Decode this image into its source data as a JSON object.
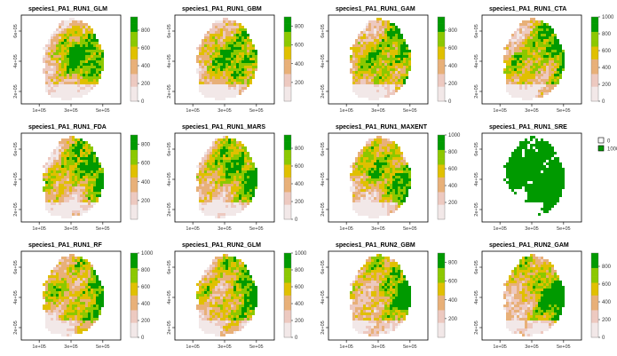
{
  "chart_data": {
    "type": "heatmap",
    "layout": {
      "rows": 3,
      "cols": 4
    },
    "x_ticks": [
      "1e+05",
      "3e+05",
      "5e+05"
    ],
    "y_ticks": [
      "2e+05",
      "4e+05",
      "6e+05"
    ],
    "colors": {
      "scale": [
        "#f2e8e8",
        "#edc9c0",
        "#e8b078",
        "#e0c000",
        "#8cc800",
        "#009a00"
      ],
      "binary": {
        "0": "#ffffff",
        "1000": "#009a00"
      }
    },
    "panels": [
      {
        "title": "species1_PA1_RUN1_GLM",
        "legend_ticks": [
          "0",
          "200",
          "400",
          "600",
          "800"
        ],
        "max": 950,
        "greenness": 0.55
      },
      {
        "title": "species1_PA1_RUN1_GBM",
        "legend_ticks": [
          "200",
          "400",
          "600",
          "800"
        ],
        "max": 900,
        "greenness": 0.5
      },
      {
        "title": "species1_PA1_RUN1_GAM",
        "legend_ticks": [
          "0",
          "200",
          "400",
          "600",
          "800"
        ],
        "max": 950,
        "greenness": 0.55
      },
      {
        "title": "species1_PA1_RUN1_CTA",
        "legend_ticks": [
          "0",
          "200",
          "400",
          "600",
          "800",
          "1000"
        ],
        "max": 1000,
        "greenness": 0.5
      },
      {
        "title": "species1_PA1_RUN1_FDA",
        "legend_ticks": [
          "200",
          "400",
          "600",
          "800"
        ],
        "max": 900,
        "greenness": 0.5
      },
      {
        "title": "species1_PA1_RUN1_MARS",
        "legend_ticks": [
          "0",
          "200",
          "400",
          "600",
          "800"
        ],
        "max": 950,
        "greenness": 0.55
      },
      {
        "title": "species1_PA1_RUN1_MAXENT",
        "legend_ticks": [
          "200",
          "400",
          "600",
          "800",
          "1000"
        ],
        "max": 1000,
        "greenness": 0.45
      },
      {
        "title": "species1_PA1_RUN1_SRE",
        "binary": true,
        "legend_entries": [
          "0",
          "1000"
        ]
      },
      {
        "title": "species1_PA1_RUN1_RF",
        "legend_ticks": [
          "0",
          "200",
          "400",
          "600",
          "800",
          "1000"
        ],
        "max": 1000,
        "greenness": 0.5
      },
      {
        "title": "species1_PA1_RUN2_GLM",
        "legend_ticks": [
          "0",
          "200",
          "400",
          "600",
          "800",
          "1000"
        ],
        "max": 1000,
        "greenness": 0.55
      },
      {
        "title": "species1_PA1_RUN2_GBM",
        "legend_ticks": [
          "200",
          "400",
          "600",
          "800"
        ],
        "max": 900,
        "greenness": 0.5
      },
      {
        "title": "species1_PA1_RUN2_GAM",
        "legend_ticks": [
          "0",
          "200",
          "400",
          "600",
          "800"
        ],
        "max": 950,
        "greenness": 0.5
      }
    ]
  }
}
